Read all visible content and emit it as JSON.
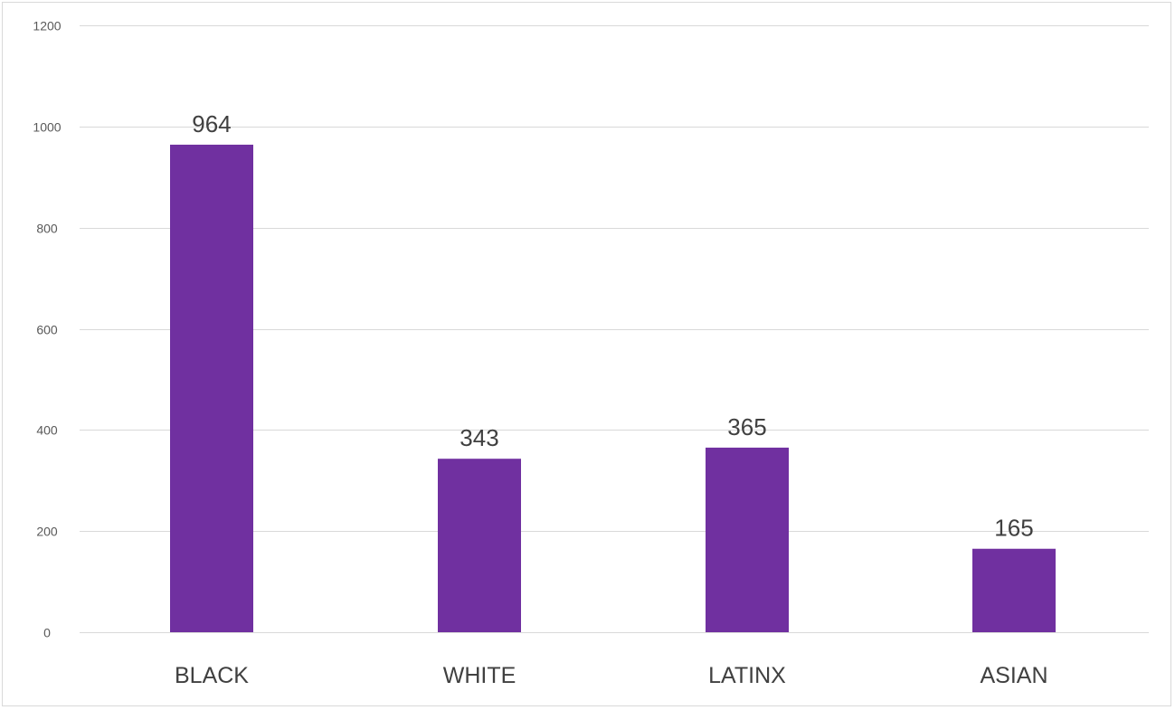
{
  "chart_data": {
    "type": "bar",
    "categories": [
      "BLACK",
      "WHITE",
      "LATINX",
      "ASIAN"
    ],
    "values": [
      964,
      343,
      365,
      165
    ],
    "data_labels": [
      "964",
      "343",
      "365",
      "165"
    ],
    "title": "",
    "xlabel": "",
    "ylabel": "",
    "ylim": [
      0,
      1200
    ],
    "yticks": [
      0,
      200,
      400,
      600,
      800,
      1000,
      1200
    ],
    "ytick_labels": [
      "0",
      "200",
      "400",
      "600",
      "800",
      "1000",
      "1200"
    ],
    "grid": true,
    "legend": "none",
    "bar_color": "#7030a0",
    "grid_color": "#d9d9d9"
  }
}
